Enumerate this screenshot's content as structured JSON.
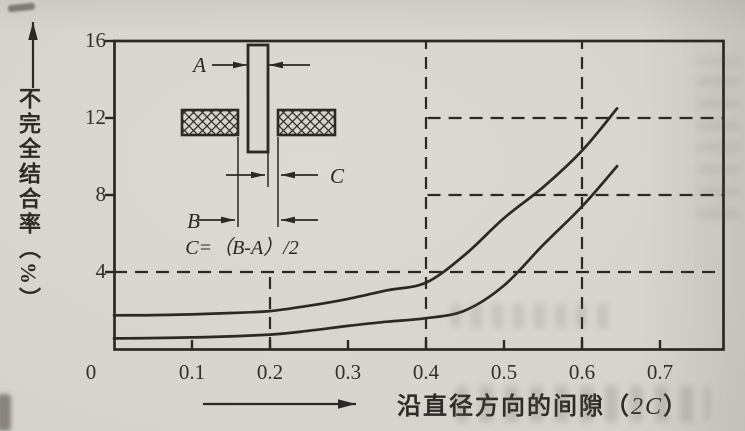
{
  "figure": {
    "colors": {
      "paper": "#d6d2cc",
      "ink": "#2b2825"
    },
    "y_axis": {
      "label": "不完全结合率",
      "unit": "（%）",
      "tick_labels": [
        "16",
        "12",
        "8",
        "4"
      ]
    },
    "x_axis": {
      "label_prefix": "沿直径方向的间隙（",
      "label_var": "2C",
      "label_suffix": "）",
      "tick_labels": [
        "0",
        "0.1",
        "0.2",
        "0.3",
        "0.4",
        "0.5",
        "0.6",
        "0.7"
      ]
    },
    "inset": {
      "label_a": "A",
      "label_b": "B",
      "label_c": "C",
      "formula": "C=（B-A）/2"
    }
  },
  "chart_data": {
    "type": "line",
    "title": "",
    "xlabel": "沿直径方向的间隙（2C）",
    "ylabel": "不完全结合率（%）",
    "xlim": [
      0,
      0.781
    ],
    "ylim": [
      0,
      16
    ],
    "x_ticks": [
      0,
      0.1,
      0.2,
      0.3,
      0.4,
      0.5,
      0.6,
      0.7
    ],
    "y_ticks": [
      4,
      8,
      12,
      16
    ],
    "grid": "dashed; horizontal line at y=4 spans full width, y=8 and y=12 start at x=0.4; vertical lines at x=0.2 (below y=4 only), x=0.4 and x=0.6 full height",
    "legend": "none (two unlabeled rising curves)",
    "series": [
      {
        "name": "upper-curve",
        "points": [
          [
            0,
            1.75
          ],
          [
            0.05,
            1.76
          ],
          [
            0.1,
            1.8
          ],
          [
            0.15,
            1.87
          ],
          [
            0.2,
            1.97
          ],
          [
            0.25,
            2.25
          ],
          [
            0.3,
            2.6
          ],
          [
            0.35,
            3.05
          ],
          [
            0.4,
            3.45
          ],
          [
            0.45,
            4.9
          ],
          [
            0.5,
            6.8
          ],
          [
            0.55,
            8.4
          ],
          [
            0.6,
            10.3
          ],
          [
            0.645,
            12.5
          ]
        ]
      },
      {
        "name": "lower-curve",
        "points": [
          [
            0,
            0.55
          ],
          [
            0.1,
            0.6
          ],
          [
            0.2,
            0.75
          ],
          [
            0.25,
            0.95
          ],
          [
            0.3,
            1.2
          ],
          [
            0.35,
            1.42
          ],
          [
            0.4,
            1.6
          ],
          [
            0.45,
            2.0
          ],
          [
            0.5,
            3.3
          ],
          [
            0.55,
            5.4
          ],
          [
            0.6,
            7.4
          ],
          [
            0.645,
            9.5
          ]
        ]
      }
    ],
    "gridlines": {
      "horizontal": [
        {
          "y": 4,
          "x0": 0,
          "x1": 0.781
        },
        {
          "y": 8,
          "x0": 0.402,
          "x1": 0.781
        },
        {
          "y": 12,
          "x0": 0.402,
          "x1": 0.781
        }
      ],
      "vertical": [
        {
          "x": 0.2,
          "y0": 0,
          "y1": 4.15
        },
        {
          "x": 0.4,
          "y0": 0,
          "y1": 16
        },
        {
          "x": 0.6,
          "y0": 0,
          "y1": 16
        }
      ]
    }
  }
}
